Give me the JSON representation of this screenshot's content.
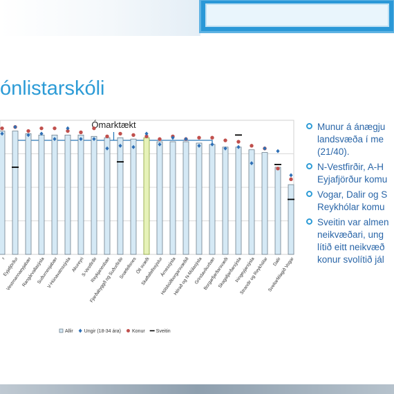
{
  "title": "ónlistarskóli",
  "bullets": [
    {
      "lines": [
        "Munur á ánægju",
        "landsvæða í me",
        "(21/40)."
      ]
    },
    {
      "lines": [
        "N-Vestfirðir, A-H",
        "Eyjafjörður komu"
      ]
    },
    {
      "lines": [
        "Vogar, Dalir og S",
        "Reykhólar komu"
      ]
    },
    {
      "lines": [
        "Sveitin var almen",
        "neikvæðari, ung",
        "lítið eitt neikvæð",
        "konur svolítið jál"
      ]
    }
  ],
  "chart_data": {
    "type": "bar",
    "annotation": "Ómarktækt",
    "ylim": [
      0,
      1
    ],
    "grid": true,
    "legend_position": "bottom",
    "categories": [
      "r",
      "Eyjafjörður",
      "Vestmannaeyjabær",
      "Rangárvallasýsla",
      "Suðurnesjabær",
      "V-Húnavatnssýsla",
      "Akureyri",
      "S-Vestfirðir",
      "Reykjanesbær",
      "Fjarðabyggð og Suðurfirðir",
      "Snæfellsnes",
      "Öll svæði",
      "Skaftafellssýslur",
      "Árnessýsla",
      "Hólsbúðborgarsvæðið",
      "Hérað og N-Múlasýsla",
      "Grindavíkurbær",
      "Borgarfjarðarsvæði",
      "Skagafjarðarsýsla",
      "Þingeyjarsýsla",
      "Strandir og Reykhólar",
      "Dalir",
      "Sveitarfélagið Vogar"
    ],
    "series": [
      {
        "name": "Allir",
        "color": "#d5e9f5",
        "values": [
          0.92,
          0.92,
          0.9,
          0.89,
          0.89,
          0.89,
          0.89,
          0.88,
          0.87,
          0.87,
          0.86,
          0.87,
          0.84,
          0.84,
          0.84,
          0.83,
          0.82,
          0.8,
          0.8,
          0.78,
          0.76,
          0.65,
          0.52
        ]
      },
      {
        "name": "Ungir (18-34 ára)",
        "color": "#2e6fb5",
        "values": [
          0.9,
          0.95,
          0.89,
          0.9,
          0.86,
          0.94,
          0.86,
          0.86,
          0.79,
          0.81,
          0.8,
          0.9,
          0.82,
          0.87,
          0.86,
          0.81,
          0.82,
          0.79,
          0.8,
          0.68,
          0.79,
          0.77,
          0.59
        ]
      },
      {
        "name": "Konur",
        "color": "#c0504d",
        "values": [
          0.94,
          0.95,
          0.92,
          0.94,
          0.94,
          0.92,
          0.91,
          0.94,
          0.88,
          0.9,
          0.89,
          0.88,
          0.86,
          0.88,
          0.86,
          0.87,
          0.87,
          0.85,
          0.84,
          0.81,
          0.79,
          0.64,
          0.56
        ]
      },
      {
        "name": "Sveitin",
        "color": "#000000",
        "values": [
          null,
          0.65,
          null,
          null,
          null,
          null,
          null,
          null,
          null,
          0.69,
          null,
          null,
          null,
          null,
          null,
          null,
          null,
          null,
          0.89,
          null,
          null,
          0.67,
          0.41
        ]
      }
    ]
  }
}
